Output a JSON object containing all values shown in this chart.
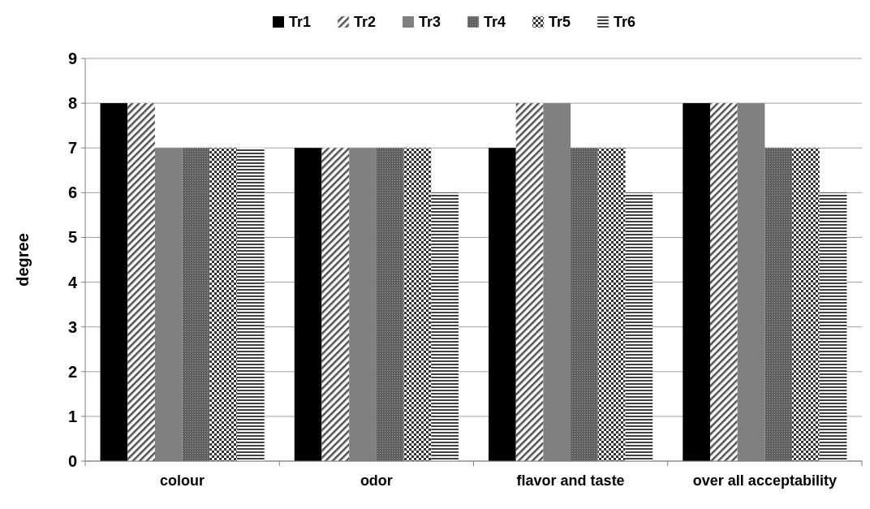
{
  "chart_data": {
    "type": "bar",
    "ylabel": "degree",
    "categories": [
      "colour",
      "odor",
      "flavor and taste",
      "over all acceptability"
    ],
    "series": [
      {
        "name": "Tr1",
        "color": "#000000",
        "values": [
          8,
          7,
          7,
          8
        ]
      },
      {
        "name": "Tr2",
        "color": "#505050",
        "values": [
          8,
          7,
          8,
          8
        ]
      },
      {
        "name": "Tr3",
        "color": "#808080",
        "values": [
          7,
          7,
          8,
          8
        ]
      },
      {
        "name": "Tr4",
        "color": "#606060",
        "values": [
          7,
          7,
          7,
          7
        ]
      },
      {
        "name": "Tr5",
        "color": "#303030",
        "values": [
          7,
          7,
          7,
          7
        ]
      },
      {
        "name": "Tr6",
        "color": "#404040",
        "values": [
          7,
          6,
          6,
          6
        ]
      }
    ],
    "ylim": [
      0,
      9
    ],
    "yticks": [
      0,
      1,
      2,
      3,
      4,
      5,
      6,
      7,
      8,
      9
    ],
    "grid": "y",
    "legend": "top"
  }
}
